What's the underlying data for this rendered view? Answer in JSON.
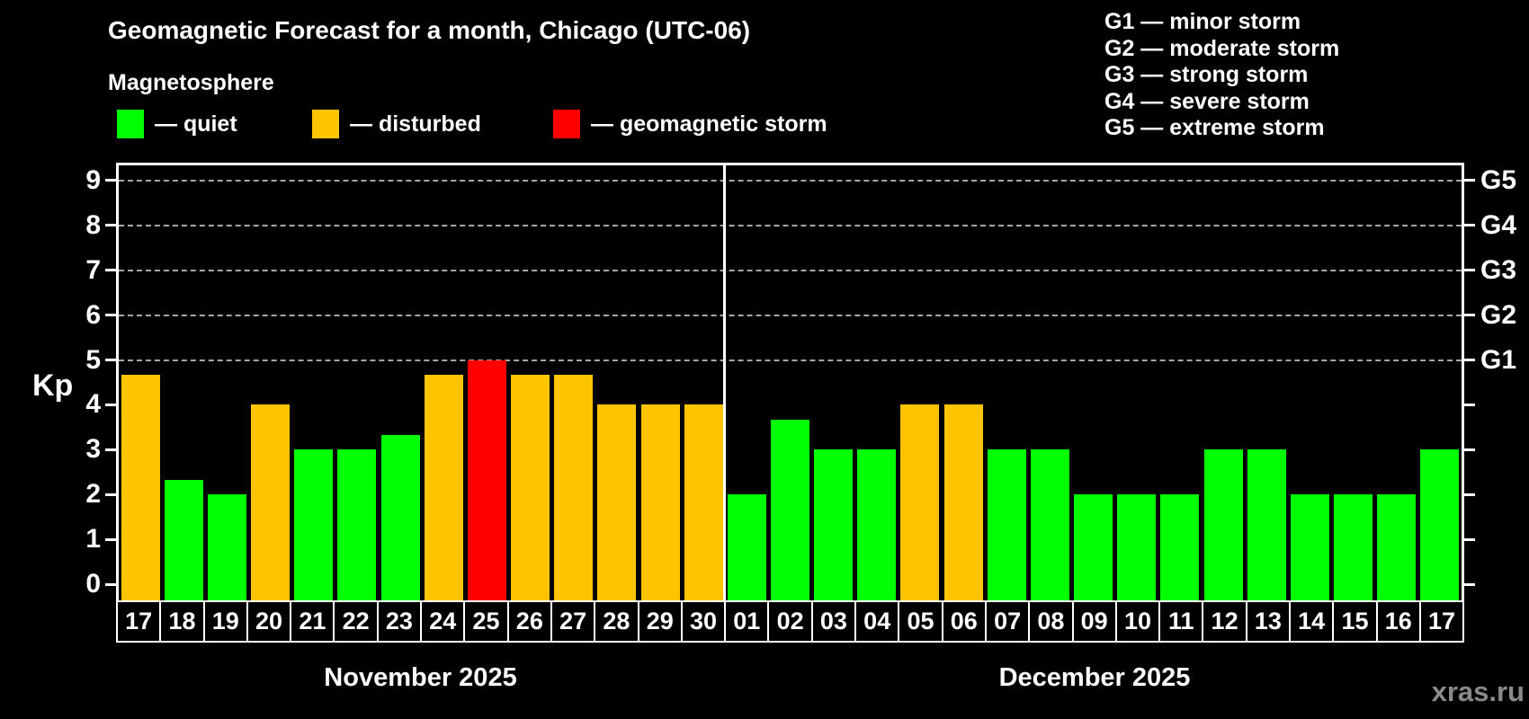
{
  "header": {
    "title": "Geomagnetic Forecast for a month, Chicago (UTC-06)",
    "subtitle": "Magnetosphere",
    "legend": [
      {
        "name": "quiet",
        "label": "— quiet",
        "color": "#00ff00"
      },
      {
        "name": "disturbed",
        "label": "— disturbed",
        "color": "#ffc400"
      },
      {
        "name": "storm",
        "label": "— geomagnetic storm",
        "color": "#ff0000"
      }
    ],
    "g_scale": [
      {
        "code": "G1",
        "label": "— minor storm"
      },
      {
        "code": "G2",
        "label": "— moderate storm"
      },
      {
        "code": "G3",
        "label": "— strong storm"
      },
      {
        "code": "G4",
        "label": "— severe storm"
      },
      {
        "code": "G5",
        "label": "— extreme storm"
      }
    ]
  },
  "axes": {
    "y_label": "Kp",
    "y_ticks": [
      "0",
      "1",
      "2",
      "3",
      "4",
      "5",
      "6",
      "7",
      "8",
      "9"
    ],
    "right_labels": [
      {
        "kp": 5,
        "text": "G1"
      },
      {
        "kp": 6,
        "text": "G2"
      },
      {
        "kp": 7,
        "text": "G3"
      },
      {
        "kp": 8,
        "text": "G4"
      },
      {
        "kp": 9,
        "text": "G5"
      }
    ]
  },
  "months": [
    {
      "label": "November 2025"
    },
    {
      "label": "December 2025"
    }
  ],
  "watermark": "xras.ru",
  "chart_data": {
    "type": "bar",
    "title": "Geomagnetic Forecast for a month, Chicago (UTC-06)",
    "subtitle": "Magnetosphere",
    "xlabel": "",
    "ylabel": "Kp",
    "ylim": [
      -0.36,
      9.36
    ],
    "grid": "dashed horizontal lines at Kp 5-9 (G1-G5)",
    "gridlines_kp": [
      5,
      6,
      7,
      8,
      9
    ],
    "day_labels": [
      "17",
      "18",
      "19",
      "20",
      "21",
      "22",
      "23",
      "24",
      "25",
      "26",
      "27",
      "28",
      "29",
      "30",
      "01",
      "02",
      "03",
      "04",
      "05",
      "06",
      "07",
      "08",
      "09",
      "10",
      "11",
      "12",
      "13",
      "14",
      "15",
      "16",
      "17"
    ],
    "x": [
      "Nov 17",
      "Nov 18",
      "Nov 19",
      "Nov 20",
      "Nov 21",
      "Nov 22",
      "Nov 23",
      "Nov 24",
      "Nov 25",
      "Nov 26",
      "Nov 27",
      "Nov 28",
      "Nov 29",
      "Nov 30",
      "Dec 01",
      "Dec 02",
      "Dec 03",
      "Dec 04",
      "Dec 05",
      "Dec 06",
      "Dec 07",
      "Dec 08",
      "Dec 09",
      "Dec 10",
      "Dec 11",
      "Dec 12",
      "Dec 13",
      "Dec 14",
      "Dec 15",
      "Dec 16",
      "Dec 17"
    ],
    "values": [
      4.67,
      2.33,
      2,
      4,
      3,
      3,
      3.33,
      4.67,
      5,
      4.67,
      4.67,
      4,
      4,
      4,
      2,
      3.67,
      3,
      3,
      4,
      4,
      3,
      3,
      2,
      2,
      2,
      3,
      3,
      2,
      2,
      2,
      3
    ],
    "status": [
      "disturbed",
      "quiet",
      "quiet",
      "disturbed",
      "quiet",
      "quiet",
      "quiet",
      "disturbed",
      "storm",
      "disturbed",
      "disturbed",
      "disturbed",
      "disturbed",
      "disturbed",
      "quiet",
      "quiet",
      "quiet",
      "quiet",
      "disturbed",
      "disturbed",
      "quiet",
      "quiet",
      "quiet",
      "quiet",
      "quiet",
      "quiet",
      "quiet",
      "quiet",
      "quiet",
      "quiet",
      "quiet"
    ],
    "colors": {
      "quiet": "#00ff00",
      "disturbed": "#ffc400",
      "storm": "#ff0000"
    },
    "legend_position": "top-left",
    "month_split_index": 14
  }
}
